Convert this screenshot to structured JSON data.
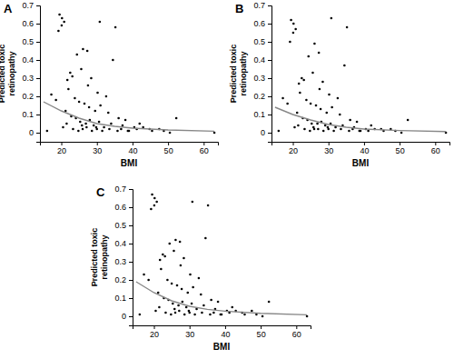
{
  "chart_data": [
    {
      "type": "scatter",
      "title": "A",
      "x_label": "BMI",
      "y_label": "Predicted toxic retinopathy",
      "xlim": [
        14,
        64
      ],
      "ylim": [
        -0.05,
        0.7
      ],
      "xticks": [
        20,
        30,
        40,
        50,
        60
      ],
      "yticks": [
        0,
        0.1,
        0.2,
        0.3,
        0.4,
        0.5,
        0.6,
        0.7
      ],
      "series": [
        {
          "type": "scatter",
          "color": "#000000",
          "marker": "circle",
          "x": [
            19.5,
            20.2,
            20.8,
            20.1,
            19.2,
            30.8,
            35.2,
            34.5,
            26.1,
            27.3,
            24.4,
            22.5,
            23.1,
            21.7,
            25.6,
            28.4,
            30.2,
            32.6,
            22.0,
            23.8,
            25.0,
            26.5,
            27.8,
            29.5,
            31.0,
            33.2,
            36.1,
            38.0,
            21.2,
            22.8,
            24.1,
            25.3,
            26.9,
            28.0,
            29.1,
            30.6,
            32.0,
            34.0,
            37.2,
            40.5,
            42.0,
            44.8,
            47.5,
            52.3,
            63.0,
            20.5,
            23.3,
            24.8,
            26.0,
            27.1,
            28.6,
            30.0,
            31.5,
            33.5,
            35.8,
            39.0,
            41.2,
            45.5,
            21.5,
            25.8,
            29.8,
            18.5,
            17.2,
            16.0,
            43.0,
            48.8,
            50.5,
            36.8,
            38.7,
            27.5
          ],
          "values": [
            0.65,
            0.63,
            0.61,
            0.59,
            0.56,
            0.61,
            0.58,
            0.4,
            0.46,
            0.45,
            0.43,
            0.33,
            0.31,
            0.29,
            0.35,
            0.3,
            0.22,
            0.2,
            0.24,
            0.19,
            0.17,
            0.16,
            0.14,
            0.12,
            0.15,
            0.11,
            0.08,
            0.07,
            0.12,
            0.09,
            0.08,
            0.06,
            0.05,
            0.07,
            0.04,
            0.06,
            0.03,
            0.05,
            0.04,
            0.03,
            0.05,
            0.02,
            0.02,
            0.08,
            0.0,
            0.03,
            0.02,
            0.01,
            0.02,
            0.03,
            0.01,
            0.02,
            0.01,
            0.02,
            0.01,
            0.01,
            0.02,
            0.01,
            0.05,
            0.04,
            0.03,
            0.18,
            0.21,
            0.01,
            0.03,
            0.01,
            0.0,
            0.02,
            0.01,
            0.26
          ]
        },
        {
          "type": "line",
          "color": "#888888",
          "line_style": "solid",
          "x": [
            15,
            20,
            25,
            30,
            35,
            40,
            50,
            63
          ],
          "values": [
            0.17,
            0.12,
            0.08,
            0.05,
            0.035,
            0.025,
            0.015,
            0.008
          ]
        }
      ]
    },
    {
      "type": "scatter",
      "title": "B",
      "x_label": "BMI",
      "y_label": "Predicted toxic retinopathy",
      "xlim": [
        14,
        64
      ],
      "ylim": [
        -0.05,
        0.7
      ],
      "xticks": [
        20,
        30,
        40,
        50,
        60
      ],
      "yticks": [
        0,
        0.1,
        0.2,
        0.3,
        0.4,
        0.5,
        0.6,
        0.7
      ],
      "series": [
        {
          "type": "scatter",
          "color": "#000000",
          "marker": "circle",
          "x": [
            19.5,
            20.2,
            20.8,
            20.1,
            19.2,
            30.8,
            35.2,
            34.5,
            26.1,
            27.3,
            24.4,
            22.5,
            23.1,
            21.7,
            25.6,
            28.4,
            30.2,
            32.6,
            22.0,
            23.8,
            25.0,
            26.5,
            27.8,
            29.5,
            31.0,
            33.2,
            36.1,
            38.0,
            21.2,
            22.8,
            24.1,
            25.3,
            26.9,
            28.0,
            29.1,
            30.6,
            32.0,
            34.0,
            37.2,
            40.5,
            42.0,
            44.8,
            47.5,
            52.3,
            63.0,
            20.5,
            23.3,
            24.8,
            26.0,
            27.1,
            28.6,
            30.0,
            31.5,
            33.5,
            35.8,
            39.0,
            41.2,
            45.5,
            21.5,
            25.8,
            29.8,
            18.5,
            17.2,
            16.0,
            43.0,
            48.8,
            50.5,
            36.8,
            38.7,
            27.5
          ],
          "values": [
            0.62,
            0.6,
            0.57,
            0.55,
            0.5,
            0.63,
            0.58,
            0.37,
            0.49,
            0.44,
            0.42,
            0.3,
            0.29,
            0.27,
            0.33,
            0.28,
            0.21,
            0.19,
            0.22,
            0.18,
            0.16,
            0.15,
            0.13,
            0.11,
            0.14,
            0.1,
            0.07,
            0.06,
            0.11,
            0.08,
            0.07,
            0.05,
            0.05,
            0.06,
            0.04,
            0.05,
            0.03,
            0.04,
            0.03,
            0.02,
            0.04,
            0.02,
            0.02,
            0.07,
            0.0,
            0.03,
            0.02,
            0.01,
            0.02,
            0.02,
            0.01,
            0.02,
            0.01,
            0.02,
            0.01,
            0.01,
            0.01,
            0.01,
            0.04,
            0.03,
            0.03,
            0.16,
            0.19,
            0.01,
            0.02,
            0.01,
            0.0,
            0.02,
            0.01,
            0.24
          ]
        },
        {
          "type": "line",
          "color": "#888888",
          "line_style": "solid",
          "x": [
            15,
            20,
            25,
            30,
            35,
            40,
            50,
            63
          ],
          "values": [
            0.14,
            0.1,
            0.07,
            0.045,
            0.03,
            0.02,
            0.012,
            0.006
          ]
        }
      ]
    },
    {
      "type": "scatter",
      "title": "C",
      "x_label": "BMI",
      "y_label": "Predicted toxic retinopathy",
      "xlim": [
        14,
        64
      ],
      "ylim": [
        -0.05,
        0.7
      ],
      "xticks": [
        20,
        30,
        40,
        50,
        60
      ],
      "yticks": [
        0,
        0.1,
        0.2,
        0.3,
        0.4,
        0.5,
        0.6,
        0.7
      ],
      "series": [
        {
          "type": "scatter",
          "color": "#000000",
          "marker": "circle",
          "x": [
            19.5,
            20.2,
            20.8,
            20.1,
            19.2,
            30.8,
            35.2,
            34.5,
            26.1,
            27.3,
            24.4,
            22.5,
            23.1,
            21.7,
            25.6,
            28.4,
            30.2,
            32.6,
            22.0,
            23.8,
            25.0,
            26.5,
            27.8,
            29.5,
            31.0,
            33.2,
            36.1,
            38.0,
            21.2,
            22.8,
            24.1,
            25.3,
            26.9,
            28.0,
            29.1,
            30.6,
            32.0,
            34.0,
            37.2,
            40.5,
            42.0,
            44.8,
            47.5,
            52.3,
            63.0,
            20.5,
            23.3,
            24.8,
            26.0,
            27.1,
            28.6,
            30.0,
            31.5,
            33.5,
            35.8,
            39.0,
            41.2,
            45.5,
            21.5,
            25.8,
            29.8,
            18.5,
            17.2,
            16.0,
            43.0,
            48.8,
            50.5,
            36.8,
            38.7,
            27.5
          ],
          "values": [
            0.67,
            0.65,
            0.63,
            0.61,
            0.59,
            0.63,
            0.61,
            0.43,
            0.42,
            0.41,
            0.4,
            0.34,
            0.33,
            0.31,
            0.36,
            0.32,
            0.23,
            0.21,
            0.26,
            0.2,
            0.18,
            0.17,
            0.15,
            0.13,
            0.16,
            0.12,
            0.09,
            0.08,
            0.13,
            0.1,
            0.09,
            0.07,
            0.06,
            0.08,
            0.05,
            0.07,
            0.04,
            0.06,
            0.04,
            0.03,
            0.05,
            0.02,
            0.03,
            0.08,
            0.0,
            0.03,
            0.02,
            0.01,
            0.02,
            0.03,
            0.01,
            0.02,
            0.01,
            0.02,
            0.01,
            0.01,
            0.02,
            0.01,
            0.05,
            0.04,
            0.03,
            0.2,
            0.23,
            0.01,
            0.03,
            0.01,
            0.0,
            0.02,
            0.01,
            0.28
          ]
        },
        {
          "type": "line",
          "color": "#888888",
          "line_style": "solid",
          "x": [
            15,
            20,
            25,
            30,
            35,
            40,
            50,
            63
          ],
          "values": [
            0.19,
            0.13,
            0.085,
            0.055,
            0.038,
            0.028,
            0.016,
            0.008
          ]
        }
      ]
    }
  ]
}
